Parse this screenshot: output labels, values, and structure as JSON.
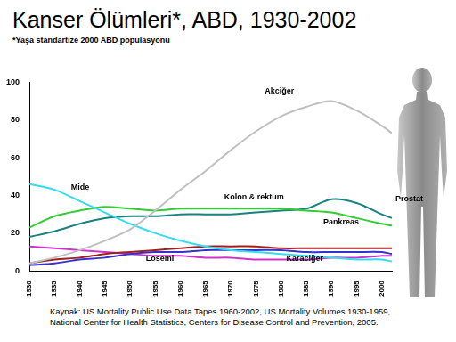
{
  "chart_data": {
    "type": "line",
    "title": "Kanser Ölümleri*, ABD, 1930-2002",
    "subtitle": "*Yaşa standartize 2000 ABD populasyonu",
    "source": [
      "Kaynak:  US Mortality Public Use Data Tapes 1960-2002, US Mortality Volumes 1930-1959,",
      "National Center for Health Statistics, Centers for Disease Control and Prevention, 2005."
    ],
    "x": [
      1930,
      1935,
      1940,
      1945,
      1950,
      1955,
      1960,
      1965,
      1970,
      1975,
      1980,
      1985,
      1990,
      1995,
      2000,
      2002
    ],
    "series": [
      {
        "name": "Akciğer",
        "color": "#c0c0c0",
        "values": [
          4,
          7,
          11,
          16,
          22,
          32,
          43,
          53,
          64,
          74,
          82,
          87,
          90,
          85,
          77,
          73
        ]
      },
      {
        "name": "Mide",
        "color": "#33ddee",
        "values": [
          46,
          43,
          37,
          31,
          25,
          20,
          16,
          13,
          11,
          10,
          9,
          8,
          7,
          6,
          6,
          5
        ]
      },
      {
        "name": "Kolon & rektum",
        "color": "#33cc33",
        "values": [
          23,
          29,
          32,
          34,
          33,
          32,
          33,
          33,
          33,
          33,
          33,
          32,
          31,
          28,
          25,
          24
        ]
      },
      {
        "name": "Prostat",
        "color": "#1a8080",
        "values": [
          18,
          21,
          25,
          28,
          29,
          29,
          30,
          30,
          30,
          31,
          32,
          33,
          38,
          36,
          30,
          28
        ]
      },
      {
        "name": "Pankreas",
        "color": "#a02020",
        "values": [
          4,
          6,
          7,
          9,
          10,
          11,
          12,
          13,
          13,
          13,
          12,
          12,
          12,
          12,
          12,
          12
        ]
      },
      {
        "name": "Lösemi",
        "color": "#3333cc",
        "values": [
          3,
          4,
          6,
          7,
          9,
          10,
          10,
          11,
          11,
          11,
          11,
          10,
          10,
          10,
          10,
          9
        ]
      },
      {
        "name": "Karaciğer",
        "color": "#cc33cc",
        "values": [
          13,
          12,
          11,
          10,
          9,
          8,
          8,
          7,
          7,
          6,
          6,
          6,
          7,
          7,
          8,
          8
        ]
      }
    ],
    "xlim": [
      1930,
      2002
    ],
    "xticks": [
      1930,
      1935,
      1940,
      1945,
      1950,
      1955,
      1960,
      1965,
      1970,
      1975,
      1980,
      1985,
      1990,
      1995,
      2000
    ],
    "ylim": [
      0,
      100
    ],
    "yticks": [
      0,
      20,
      40,
      60,
      80,
      100
    ],
    "grid": false
  }
}
